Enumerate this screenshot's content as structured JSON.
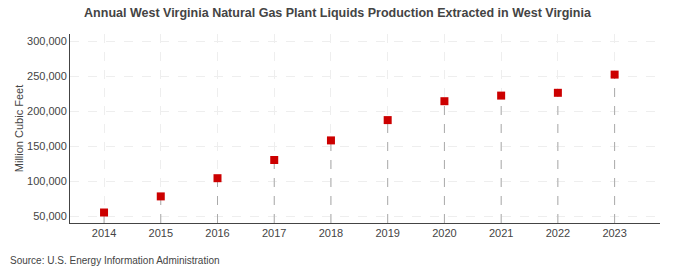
{
  "chart_data": {
    "type": "scatter",
    "title": "Annual West Virginia Natural Gas Plant Liquids Production Extracted in West Virginia",
    "ylabel": "Million Cubic Feet",
    "annotations": [
      "Source: U.S. Energy Information Administration"
    ],
    "x": [
      2014,
      2015,
      2016,
      2017,
      2018,
      2019,
      2020,
      2021,
      2022,
      2023
    ],
    "values": [
      55000,
      78000,
      104000,
      130000,
      158000,
      187000,
      214000,
      222000,
      226000,
      252000
    ],
    "color": "#cc0000",
    "marker": "square",
    "xlim": [
      2013.4,
      2023.8
    ],
    "xticks": [
      2014,
      2015,
      2016,
      2017,
      2018,
      2019,
      2020,
      2021,
      2022,
      2023
    ],
    "ylim": [
      40000,
      310000
    ],
    "yticks": [
      {
        "value": 50000,
        "label": "50,000"
      },
      {
        "value": 100000,
        "label": "100,000"
      },
      {
        "value": 150000,
        "label": "150,000"
      },
      {
        "value": 200000,
        "label": "200,000"
      },
      {
        "value": 250000,
        "label": "250,000"
      },
      {
        "value": 300000,
        "label": "300,000"
      }
    ],
    "grid": true
  }
}
